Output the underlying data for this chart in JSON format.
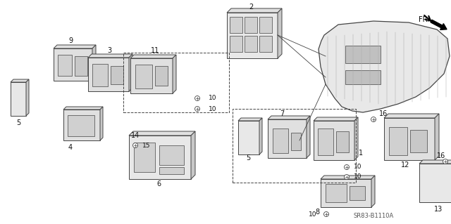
{
  "background_color": "#ffffff",
  "diagram_code": "SR83-B1110A",
  "fig_width": 6.4,
  "fig_height": 3.19,
  "dpi": 100,
  "lc": "#444444",
  "tc": "#111111",
  "gray_fill": "#d8d8d8",
  "light_fill": "#eeeeee",
  "white_fill": "#f8f8f8"
}
